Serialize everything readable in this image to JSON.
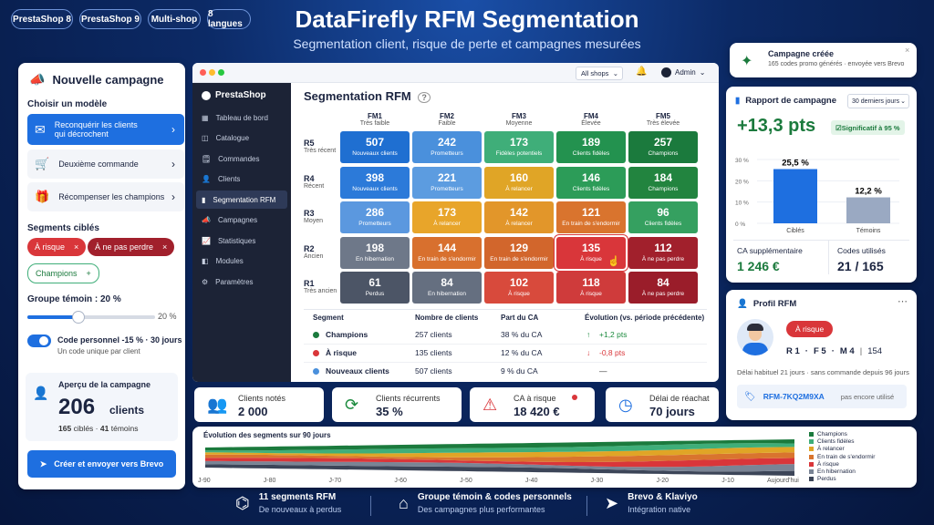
{
  "pills": [
    "PrestaShop 8",
    "PrestaShop 9",
    "Multi-shop",
    "8 langues"
  ],
  "title": "DataFirefly RFM Segmentation",
  "subtitle": "Segmentation client, risque de perte et campagnes mesurées",
  "campaign": {
    "title": "Nouvelle campagne",
    "choose_label": "Choisir un modèle",
    "templates": [
      "Reconquérir les clients qui décrochent",
      "Deuxième commande",
      "Récompenser les champions"
    ],
    "segments_label": "Segments ciblés",
    "tags": [
      "À risque",
      "À ne pas perdre",
      "Champions"
    ],
    "control_label": "Groupe témoin : 20 %",
    "control_value": "20 %",
    "control_fraction": 0.2,
    "code_title": "Code personnel -15 % · 30 jours",
    "code_sub": "Un code unique par client",
    "preview_label": "Aperçu de la campagne",
    "preview_count": "206",
    "preview_unit": "clients",
    "preview_targets": "165",
    "preview_targets_label": "ciblés",
    "preview_sep": "·",
    "preview_controls": "41",
    "preview_controls_label": "témoins",
    "send_button": "Créer et envoyer vers Brevo"
  },
  "window": {
    "shop_select": "All shops",
    "user": "Admin",
    "logo": "PrestaShop",
    "nav": [
      "Tableau de bord",
      "Catalogue",
      "Commandes",
      "Clients",
      "Segmentation RFM",
      "Campagnes",
      "Statistiques",
      "Modules",
      "Paramètres"
    ],
    "page_title": "Segmentation RFM",
    "cols": [
      {
        "k": "FM1",
        "s": "Très faible"
      },
      {
        "k": "FM2",
        "s": "Faible"
      },
      {
        "k": "FM3",
        "s": "Moyenne"
      },
      {
        "k": "FM4",
        "s": "Élevée"
      },
      {
        "k": "FM5",
        "s": "Très élevée"
      }
    ],
    "rows": [
      {
        "k": "R5",
        "s": "Très récent"
      },
      {
        "k": "R4",
        "s": "Récent"
      },
      {
        "k": "R3",
        "s": "Moyen"
      },
      {
        "k": "R2",
        "s": "Ancien"
      },
      {
        "k": "R1",
        "s": "Très ancien"
      }
    ],
    "cells": [
      [
        {
          "n": "507",
          "l": "Nouveaux clients",
          "c": "#1f6fd1"
        },
        {
          "n": "242",
          "l": "Prometteurs",
          "c": "#4a90dc"
        },
        {
          "n": "173",
          "l": "Fidèles potentiels",
          "c": "#3fae79"
        },
        {
          "n": "189",
          "l": "Clients fidèles",
          "c": "#23924f"
        },
        {
          "n": "257",
          "l": "Champions",
          "c": "#1b7a3d"
        }
      ],
      [
        {
          "n": "398",
          "l": "Nouveaux clients",
          "c": "#2c7ad9"
        },
        {
          "n": "221",
          "l": "Prometteurs",
          "c": "#5c9ce0"
        },
        {
          "n": "160",
          "l": "À relancer",
          "c": "#e0a526"
        },
        {
          "n": "146",
          "l": "Clients fidèles",
          "c": "#2c9c58"
        },
        {
          "n": "184",
          "l": "Champions",
          "c": "#22843f"
        }
      ],
      [
        {
          "n": "286",
          "l": "Prometteurs",
          "c": "#5b98df"
        },
        {
          "n": "173",
          "l": "À relancer",
          "c": "#e8a52a"
        },
        {
          "n": "142",
          "l": "À relancer",
          "c": "#e2962a"
        },
        {
          "n": "121",
          "l": "En train de s'endormir",
          "c": "#d9742e"
        },
        {
          "n": "96",
          "l": "Clients fidèles",
          "c": "#35a060"
        }
      ],
      [
        {
          "n": "198",
          "l": "En hibernation",
          "c": "#6e7889"
        },
        {
          "n": "144",
          "l": "En train de s'endormir",
          "c": "#d8702e"
        },
        {
          "n": "129",
          "l": "En train de s'endormir",
          "c": "#d2662c"
        },
        {
          "n": "135",
          "l": "À risque",
          "c": "#d9363a"
        },
        {
          "n": "112",
          "l": "À ne pas perdre",
          "c": "#a1202c"
        }
      ],
      [
        {
          "n": "61",
          "l": "Perdus",
          "c": "#4c5566"
        },
        {
          "n": "84",
          "l": "En hibernation",
          "c": "#656f80"
        },
        {
          "n": "102",
          "l": "À risque",
          "c": "#d84a3c"
        },
        {
          "n": "118",
          "l": "À risque",
          "c": "#cf3b3b"
        },
        {
          "n": "84",
          "l": "À ne pas perdre",
          "c": "#9a1d2a"
        }
      ]
    ],
    "table_headers": [
      "Segment",
      "Nombre de clients",
      "Part du CA",
      "Évolution (vs. période précédente)"
    ],
    "table": [
      {
        "seg": "Champions",
        "n": "257 clients",
        "ca": "38 % du CA",
        "ev": "+1,2 pts",
        "dir": "↑",
        "c": "#1b7a3d",
        "ec": "#1b8a3d"
      },
      {
        "seg": "À risque",
        "n": "135 clients",
        "ca": "12 % du CA",
        "ev": "-0,8 pts",
        "dir": "↓",
        "c": "#d9363a",
        "ec": "#d9363a"
      },
      {
        "seg": "Nouveaux clients",
        "n": "507 clients",
        "ca": "9 % du CA",
        "ev": "—",
        "dir": "",
        "c": "#4a90dc",
        "ec": "#333"
      }
    ]
  },
  "stats": [
    {
      "l": "Clients notés",
      "v": "2 000",
      "ic": "👥"
    },
    {
      "l": "Clients récurrents",
      "v": "35 %",
      "ic": "⟳"
    },
    {
      "l": "CA à risque",
      "v": "18 420 €",
      "ic": "⚠"
    },
    {
      "l": "Délai de réachat",
      "v": "70 jours",
      "ic": "◷"
    }
  ],
  "toast": {
    "title": "Campagne créée",
    "sub": "165 codes promo générés · envoyée vers Brevo"
  },
  "report": {
    "title": "Rapport de campagne",
    "period": "30 derniers jours",
    "lift": "+13,3 pts",
    "badge": "Significatif à 95 %",
    "bars": [
      {
        "name": "Ciblés",
        "value": 25.5,
        "label": "25,5 %",
        "c": "#1e6fe0"
      },
      {
        "name": "Témoins",
        "value": 12.2,
        "label": "12,2 %",
        "c": "#9aa9c2"
      }
    ],
    "yticks": [
      "30 %",
      "20 %",
      "10 %",
      "0 %"
    ],
    "ca_label": "CA supplémentaire",
    "ca_value": "1 246 €",
    "codes_label": "Codes utilisés",
    "codes_value": "21 / 165"
  },
  "profile": {
    "title": "Profil RFM",
    "badge": "À risque",
    "r": "R 1",
    "f": "F 5",
    "m": "M 4",
    "score": "154",
    "delay": "Délai habituel 21 jours · sans commande depuis 96 jours",
    "code": "RFM-7KQ2M9XA",
    "code_status": "pas encore utilisé"
  },
  "chart_data": {
    "type": "area",
    "title": "Évolution des segments sur 90 jours",
    "x": [
      "J-90",
      "J-80",
      "J-70",
      "J-60",
      "J-50",
      "J-40",
      "J-30",
      "J-20",
      "J-10",
      "Aujourd'hui"
    ],
    "series": [
      {
        "name": "Champions",
        "color": "#1b7a3d"
      },
      {
        "name": "Clients fidèles",
        "color": "#3fae79"
      },
      {
        "name": "À relancer",
        "color": "#e0a526"
      },
      {
        "name": "En train de s'endormir",
        "color": "#d9742e"
      },
      {
        "name": "À risque",
        "color": "#d9363a"
      },
      {
        "name": "En hibernation",
        "color": "#7a8495"
      },
      {
        "name": "Perdus",
        "color": "#3c4558"
      }
    ]
  },
  "footer": [
    {
      "t1": "11 segments RFM",
      "t2": "De nouveaux à perdus",
      "ic": "⌬"
    },
    {
      "t1": "Groupe témoin & codes personnels",
      "t2": "Des campagnes plus performantes",
      "ic": "⌂"
    },
    {
      "t1": "Brevo & Klaviyo",
      "t2": "Intégration native",
      "ic": "➤"
    }
  ]
}
